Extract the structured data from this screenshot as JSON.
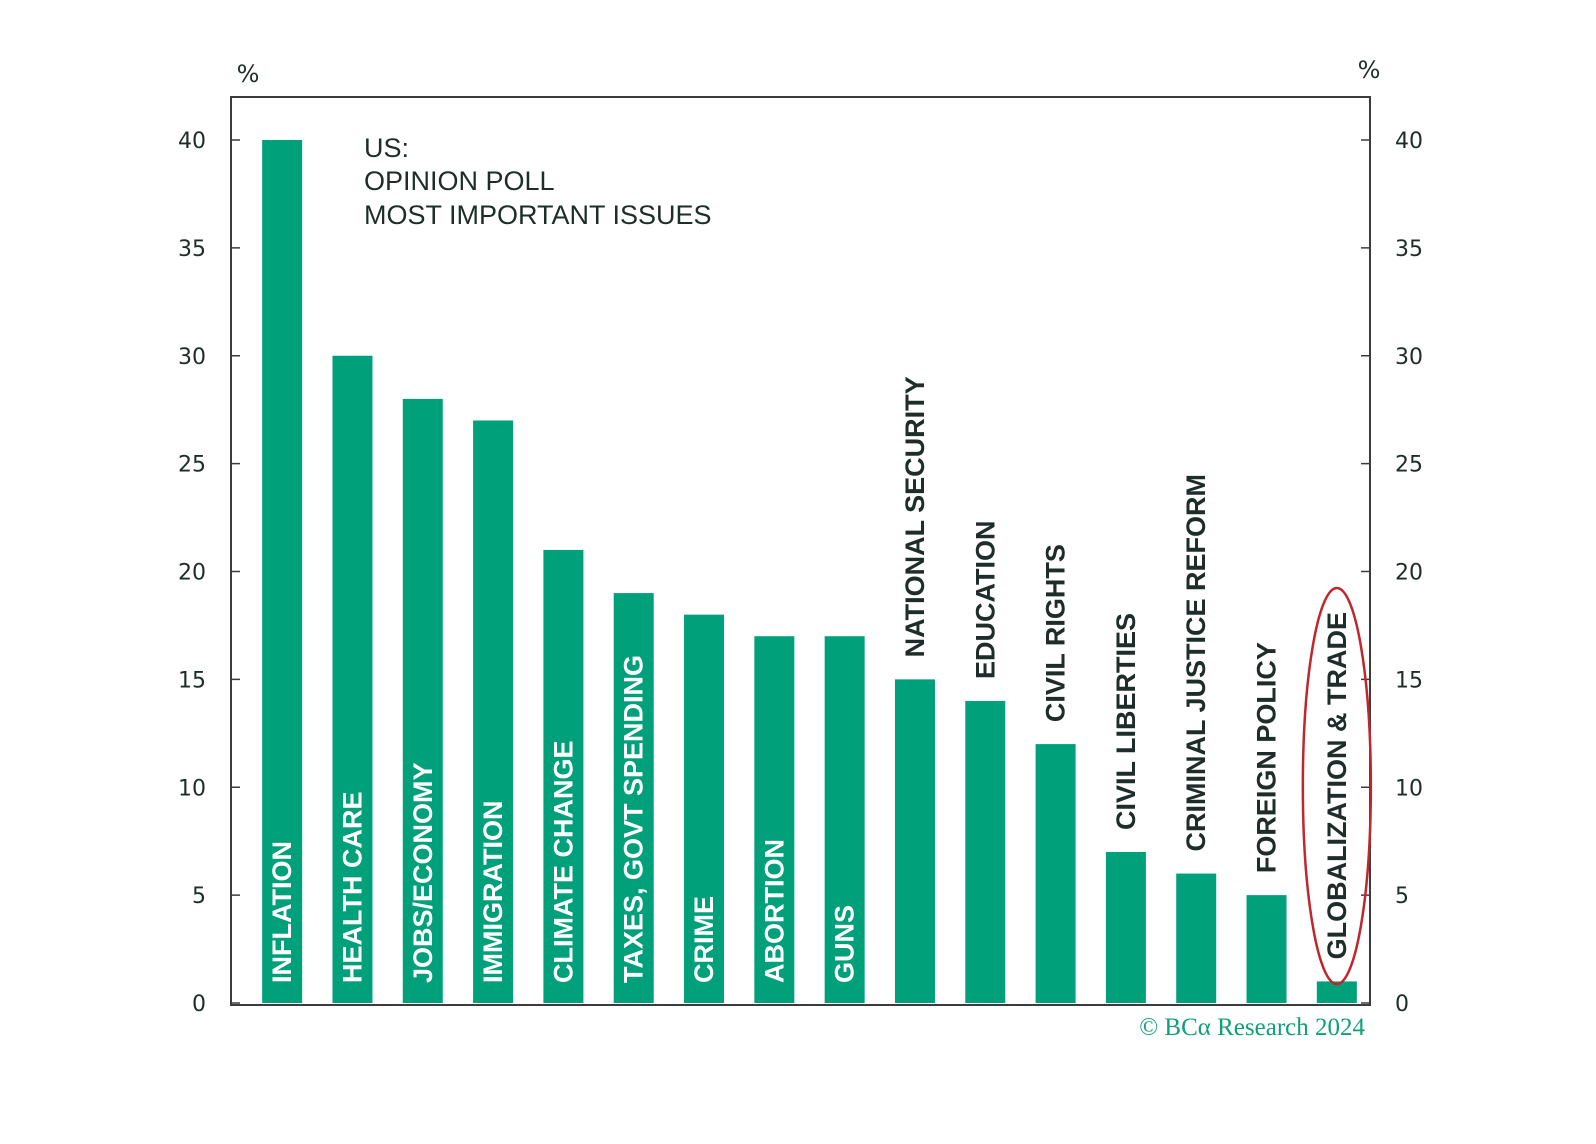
{
  "chart_data": {
    "type": "bar",
    "title": [
      "US:",
      "OPINION POLL",
      "MOST IMPORTANT ISSUES"
    ],
    "y_unit_left": "%",
    "y_unit_right": "%",
    "ylim": [
      0,
      40
    ],
    "yticks": [
      0,
      5,
      10,
      15,
      20,
      25,
      30,
      35,
      40
    ],
    "categories": [
      "INFLATION",
      "HEALTH CARE",
      "JOBS/ECONOMY",
      "IMMIGRATION",
      "CLIMATE CHANGE",
      "TAXES, GOVT SPENDING",
      "CRIME",
      "ABORTION",
      "GUNS",
      "NATIONAL SECURITY",
      "EDUCATION",
      "CIVIL RIGHTS",
      "CIVIL LIBERTIES",
      "CRIMINAL JUSTICE REFORM",
      "FOREIGN POLICY",
      "GLOBALIZATION & TRADE"
    ],
    "values": [
      40,
      30,
      28,
      27,
      21,
      19,
      18,
      17,
      17,
      15,
      14,
      12,
      7,
      6,
      5,
      1
    ],
    "label_inside": [
      true,
      true,
      true,
      true,
      true,
      true,
      true,
      true,
      true,
      false,
      false,
      false,
      false,
      false,
      false,
      false
    ],
    "highlighted_category": "GLOBALIZATION & TRADE",
    "credit": "© BCα Research 2024",
    "colors": {
      "bar": "#00a07a",
      "axis": "#3c3c3c",
      "text": "#1e2d2a",
      "label_inside": "#ffffff",
      "highlight": "#c0272d",
      "credit": "#0fa07a"
    }
  }
}
